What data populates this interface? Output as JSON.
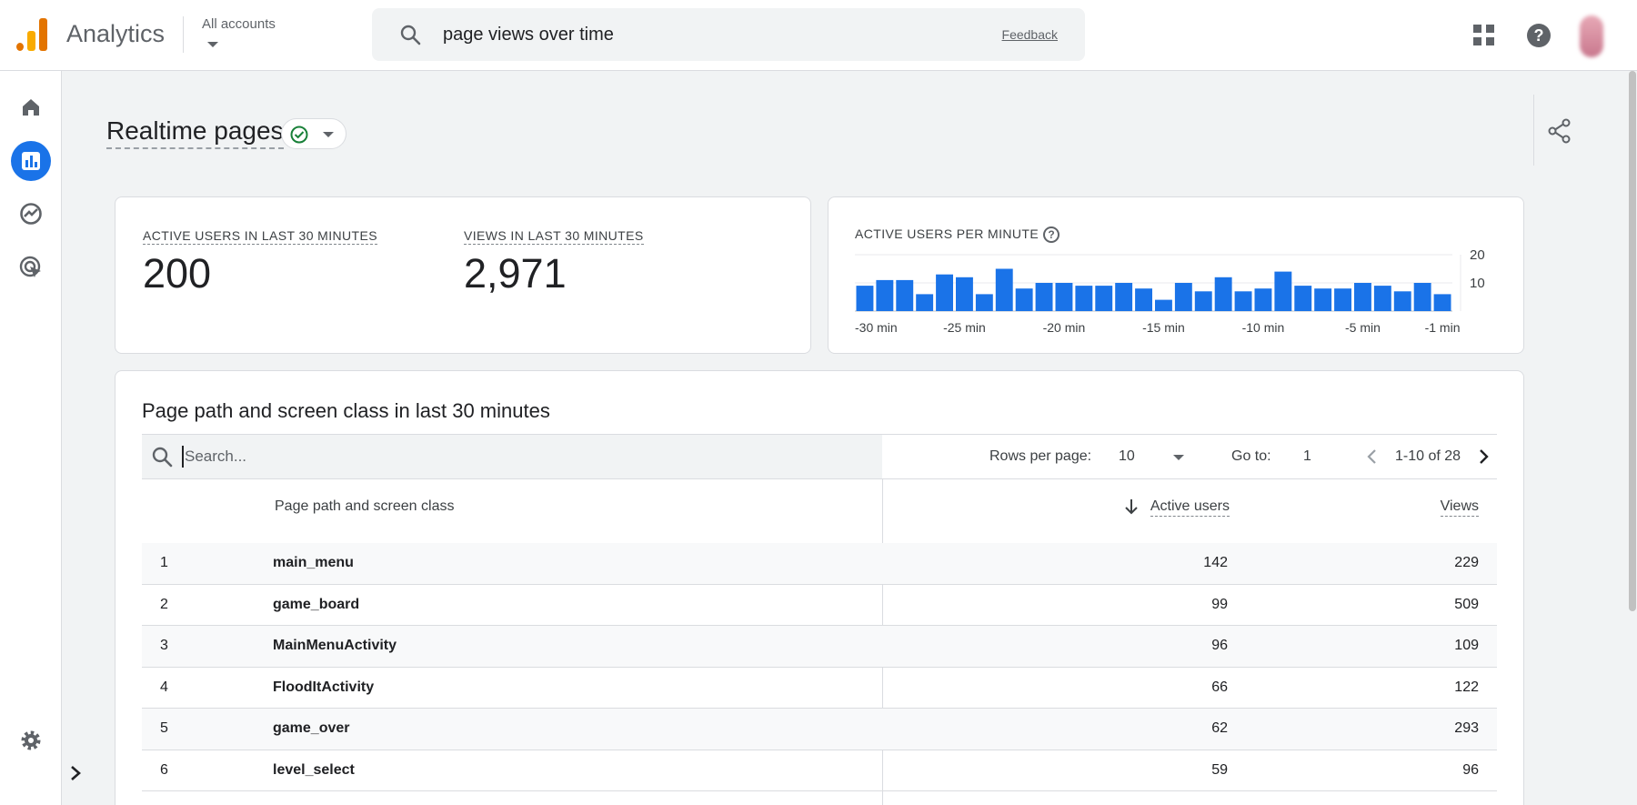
{
  "header": {
    "app_title": "Analytics",
    "account_label": "All accounts",
    "search_query": "page views over time",
    "feedback_label": "Feedback"
  },
  "page": {
    "title": "Realtime pages"
  },
  "metrics": {
    "active_users_label": "ACTIVE USERS IN LAST 30 MINUTES",
    "active_users_value": "200",
    "views_label": "VIEWS IN LAST 30 MINUTES",
    "views_value": "2,971"
  },
  "chart_data": {
    "type": "bar",
    "title": "ACTIVE USERS PER MINUTE",
    "x_tick_labels": [
      "-30 min",
      "-25 min",
      "-20 min",
      "-15 min",
      "-10 min",
      "-5 min",
      "-1 min"
    ],
    "y_tick_labels": [
      "20",
      "10"
    ],
    "ylim": [
      0,
      20
    ],
    "values": [
      9,
      11,
      11,
      6,
      13,
      12,
      6,
      15,
      8,
      10,
      10,
      9,
      9,
      10,
      8,
      4,
      10,
      7,
      12,
      7,
      8,
      14,
      9,
      8,
      8,
      10,
      9,
      7,
      10,
      6
    ],
    "color": "#1a73e8"
  },
  "table": {
    "title": "Page path and screen class in last 30 minutes",
    "search_placeholder": "Search...",
    "rows_per_page_label": "Rows per page:",
    "rows_per_page_value": "10",
    "goto_label": "Go to:",
    "goto_value": "1",
    "range_label": "1-10 of 28",
    "columns": {
      "path": "Page path and screen class",
      "active_users": "Active users",
      "views": "Views"
    },
    "rows": [
      {
        "idx": "1",
        "path": "main_menu",
        "active_users": "142",
        "views": "229"
      },
      {
        "idx": "2",
        "path": "game_board",
        "active_users": "99",
        "views": "509"
      },
      {
        "idx": "3",
        "path": "MainMenuActivity",
        "active_users": "96",
        "views": "109"
      },
      {
        "idx": "4",
        "path": "FloodItActivity",
        "active_users": "66",
        "views": "122"
      },
      {
        "idx": "5",
        "path": "game_over",
        "active_users": "62",
        "views": "293"
      },
      {
        "idx": "6",
        "path": "level_select",
        "active_users": "59",
        "views": "96"
      }
    ]
  },
  "icons": {
    "nav": [
      "home-icon",
      "reports-icon",
      "explore-icon",
      "advertising-icon"
    ],
    "settings": "gear-icon"
  }
}
